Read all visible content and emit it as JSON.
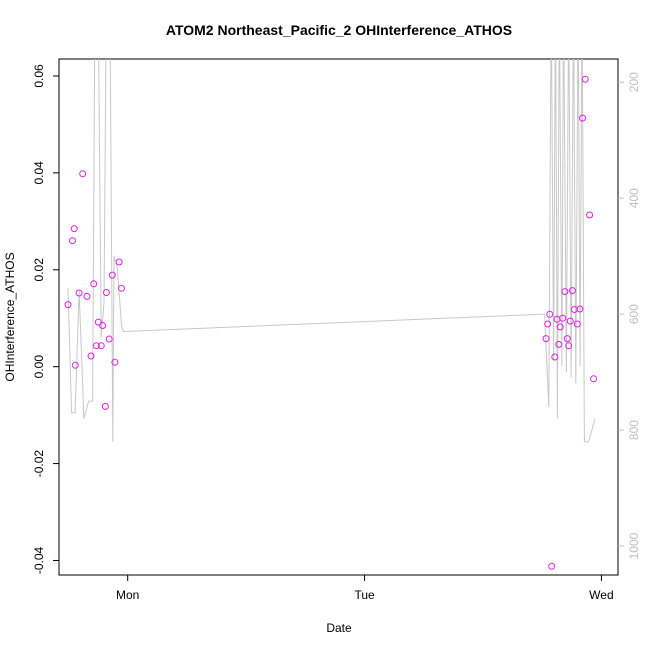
{
  "chart_data": {
    "type": "scatter",
    "title": "ATOM2 Northeast_Pacific_2 OHInterference_ATHOS",
    "xlabel": "Date",
    "ylabel": "OHInterference_ATHOS",
    "xlim": [
      -0.29,
      2.07
    ],
    "ylim": [
      -0.043,
      0.0635
    ],
    "x_ticks": [
      {
        "value": 0,
        "label": "Mon"
      },
      {
        "value": 1,
        "label": "Tue"
      },
      {
        "value": 2,
        "label": "Wed"
      }
    ],
    "y_ticks": [
      {
        "value": -0.04,
        "label": "-0.04"
      },
      {
        "value": -0.02,
        "label": "-0.02"
      },
      {
        "value": 0.0,
        "label": "0.00"
      },
      {
        "value": 0.02,
        "label": "0.02"
      },
      {
        "value": 0.04,
        "label": "0.04"
      },
      {
        "value": 0.06,
        "label": "0.06"
      }
    ],
    "y2lim": [
      1050,
      160
    ],
    "y2_ticks": [
      {
        "value": 200,
        "label": "200"
      },
      {
        "value": 400,
        "label": "400"
      },
      {
        "value": 600,
        "label": "600"
      },
      {
        "value": 800,
        "label": "800"
      },
      {
        "value": 1000,
        "label": "1000"
      }
    ],
    "point_color": "#e020e0",
    "line_color": "#c8c8c8",
    "series": [
      {
        "type": "scatter",
        "axis": "left",
        "points": [
          [
            -0.252,
            0.0128
          ],
          [
            -0.233,
            0.026
          ],
          [
            -0.226,
            0.0285
          ],
          [
            -0.221,
            0.0003
          ],
          [
            -0.205,
            0.0152
          ],
          [
            -0.19,
            0.0398
          ],
          [
            -0.172,
            0.0145
          ],
          [
            -0.155,
            0.0022
          ],
          [
            -0.143,
            0.0171
          ],
          [
            -0.132,
            0.0043
          ],
          [
            -0.124,
            0.0092
          ],
          [
            -0.112,
            0.0043
          ],
          [
            -0.106,
            0.0085
          ],
          [
            -0.094,
            -0.0082
          ],
          [
            -0.09,
            0.0153
          ],
          [
            -0.078,
            0.0057
          ],
          [
            -0.065,
            0.0189
          ],
          [
            -0.054,
            0.0009
          ],
          [
            -0.036,
            0.0216
          ],
          [
            -0.026,
            0.0162
          ],
          [
            1.766,
            0.0058
          ],
          [
            1.773,
            0.0088
          ],
          [
            1.782,
            0.0108
          ],
          [
            1.79,
            -0.0412
          ],
          [
            1.803,
            0.002
          ],
          [
            1.813,
            0.0098
          ],
          [
            1.82,
            0.0046
          ],
          [
            1.826,
            0.0082
          ],
          [
            1.836,
            0.01
          ],
          [
            1.846,
            0.0155
          ],
          [
            1.856,
            0.0058
          ],
          [
            1.862,
            0.0043
          ],
          [
            1.868,
            0.0094
          ],
          [
            1.878,
            0.0157
          ],
          [
            1.886,
            0.0118
          ],
          [
            1.898,
            0.0088
          ],
          [
            1.909,
            0.0119
          ],
          [
            1.92,
            0.0513
          ],
          [
            1.932,
            0.0593
          ],
          [
            1.95,
            0.0313
          ],
          [
            1.967,
            -0.0025
          ]
        ]
      },
      {
        "type": "line",
        "axis": "right",
        "points": [
          [
            -0.252,
            555
          ],
          [
            -0.237,
            770
          ],
          [
            -0.222,
            770
          ],
          [
            -0.205,
            560
          ],
          [
            -0.185,
            780
          ],
          [
            -0.165,
            750
          ],
          [
            -0.148,
            750
          ],
          [
            -0.138,
            50
          ],
          [
            -0.125,
            50
          ],
          [
            -0.112,
            640
          ],
          [
            -0.1,
            580
          ],
          [
            -0.09,
            50
          ],
          [
            -0.075,
            50
          ],
          [
            -0.063,
            820
          ],
          [
            -0.058,
            500
          ],
          [
            -0.044,
            520
          ],
          [
            -0.026,
            620
          ],
          [
            -0.018,
            630
          ],
          [
            1.76,
            600
          ],
          [
            1.778,
            760
          ],
          [
            1.788,
            50
          ],
          [
            1.798,
            680
          ],
          [
            1.806,
            50
          ],
          [
            1.814,
            780
          ],
          [
            1.822,
            50
          ],
          [
            1.833,
            690
          ],
          [
            1.84,
            50
          ],
          [
            1.852,
            700
          ],
          [
            1.862,
            50
          ],
          [
            1.872,
            710
          ],
          [
            1.882,
            50
          ],
          [
            1.892,
            720
          ],
          [
            1.902,
            50
          ],
          [
            1.91,
            690
          ],
          [
            1.918,
            50
          ],
          [
            1.928,
            820
          ],
          [
            1.945,
            820
          ],
          [
            1.96,
            800
          ],
          [
            1.972,
            780
          ]
        ]
      }
    ]
  }
}
